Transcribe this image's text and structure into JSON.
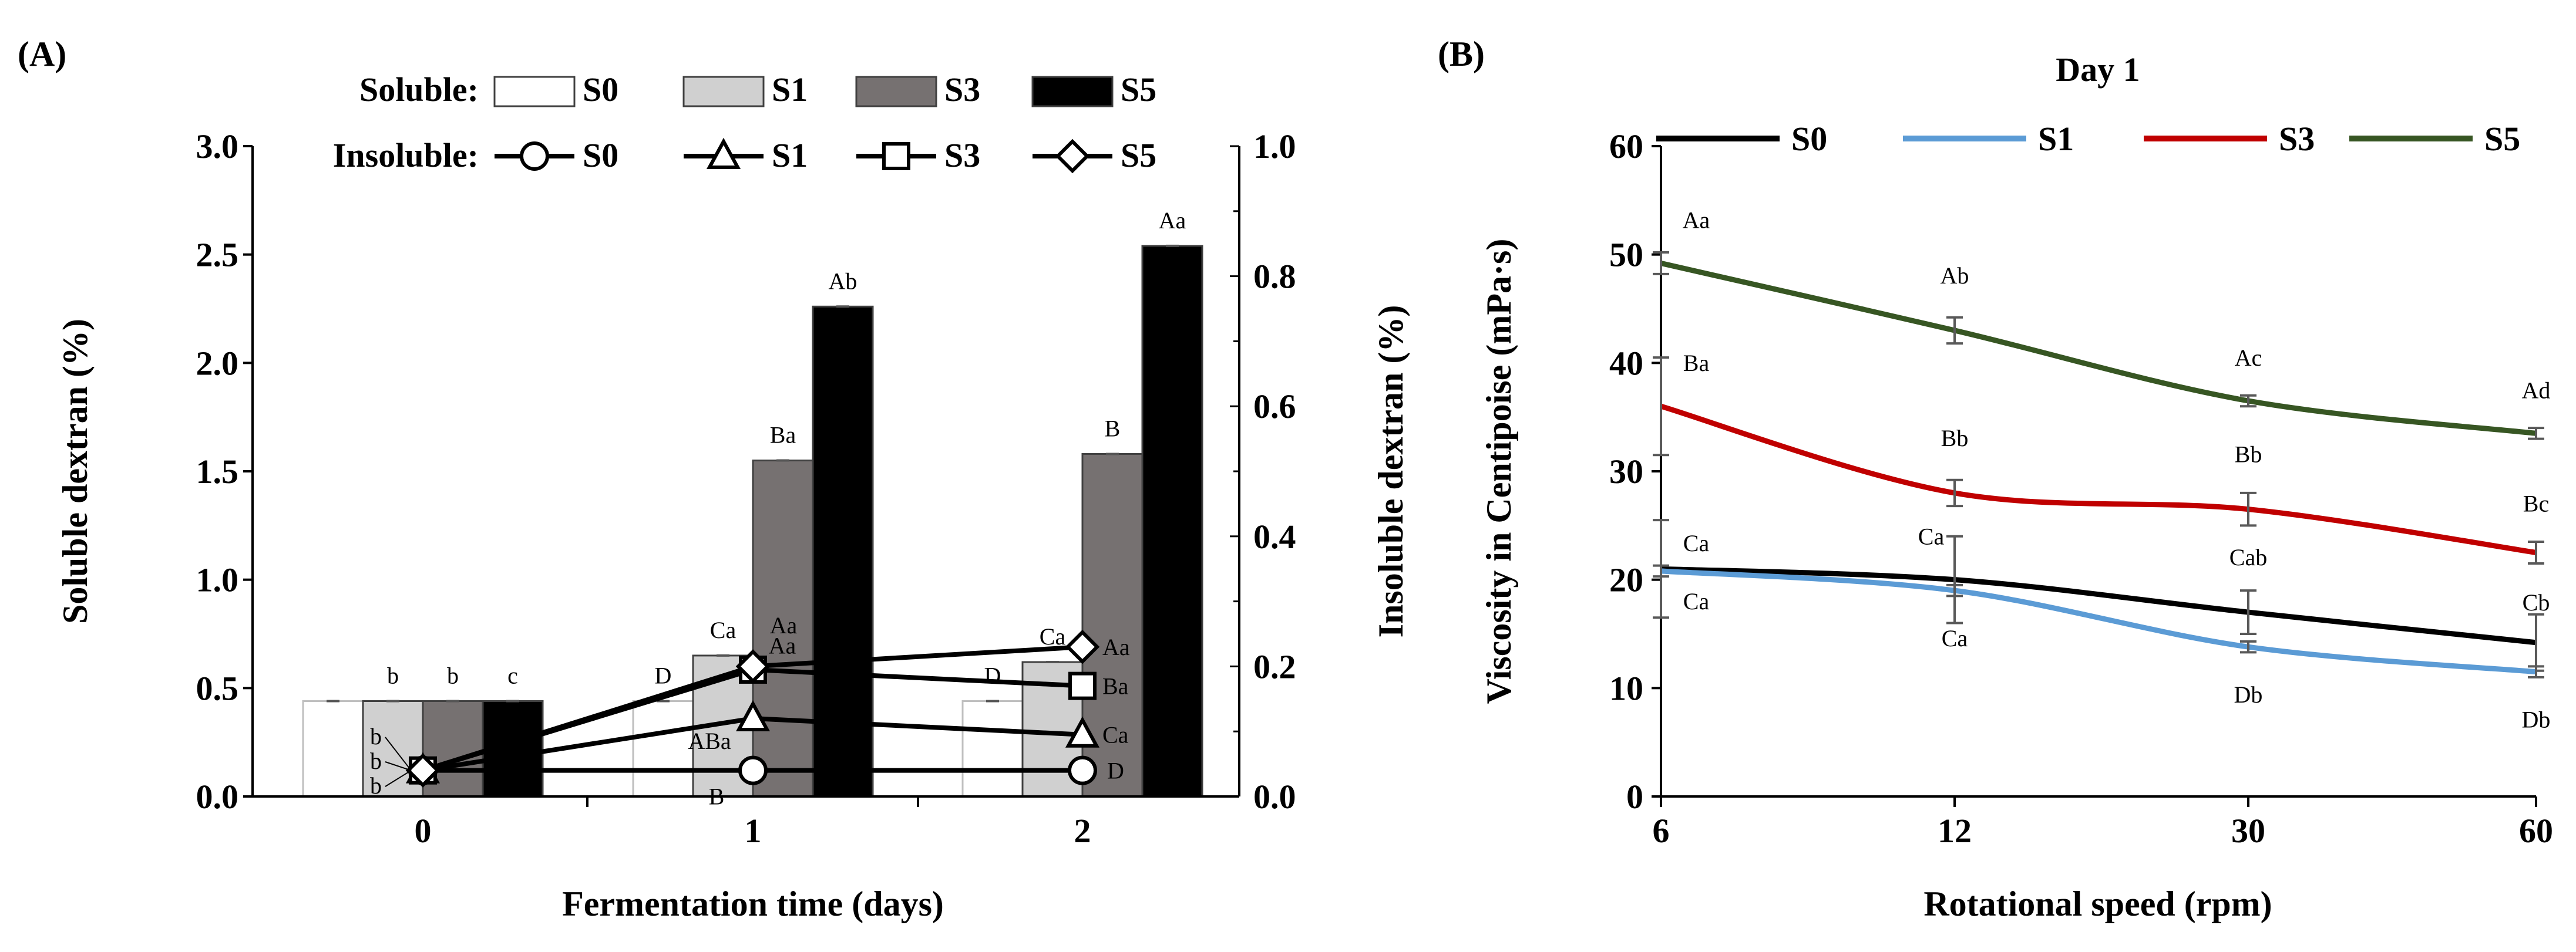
{
  "chart_data": [
    {
      "panel": "(A)",
      "type": "bar+line",
      "title": "",
      "xlabel": "Fermentation time (days)",
      "ylabel": "Soluble dextran (%)",
      "ylabel_right": "Insoluble dextran (%)",
      "categories": [
        "0",
        "1",
        "2"
      ],
      "ylim": [
        0,
        3.0
      ],
      "ylim_right": [
        0,
        1.0
      ],
      "yticks": [
        "0.0",
        "0.5",
        "1.0",
        "1.5",
        "2.0",
        "2.5",
        "3.0"
      ],
      "yticks_right": [
        "0.0",
        "0.2",
        "0.4",
        "0.6",
        "0.8",
        "1.0"
      ],
      "legend_soluble_label": "Soluble:",
      "legend_insoluble_label": "Insoluble:",
      "bar_series": [
        {
          "name": "S0",
          "color": "#ffffff",
          "values": [
            0.44,
            0.44,
            0.44
          ],
          "letters": [
            "",
            "D",
            ""
          ]
        },
        {
          "name": "S1",
          "color": "#d0d0d0",
          "values": [
            0.44,
            0.65,
            0.62
          ],
          "letters": [
            "b",
            "Ca",
            "Ca"
          ]
        },
        {
          "name": "S3",
          "color": "#767171",
          "values": [
            0.44,
            1.55,
            1.58
          ],
          "letters": [
            "b",
            "Ba",
            "B"
          ]
        },
        {
          "name": "S5",
          "color": "#000000",
          "values": [
            0.44,
            2.26,
            2.54
          ],
          "letters": [
            "c",
            "Ab",
            "Aa"
          ]
        }
      ],
      "bar_extra_labels": [
        {
          "text": "D",
          "category": "2",
          "series": "S0"
        }
      ],
      "line_series": [
        {
          "name": "S0",
          "marker": "circle",
          "values": [
            0.04,
            0.04,
            0.04
          ],
          "letters": [
            "b",
            "B",
            "D"
          ]
        },
        {
          "name": "S1",
          "marker": "triangle",
          "values": [
            0.04,
            0.12,
            0.095
          ],
          "letters": [
            "b",
            "ABa",
            "Ca"
          ]
        },
        {
          "name": "S3",
          "marker": "square",
          "values": [
            0.04,
            0.195,
            0.17
          ],
          "letters": [
            "b",
            "Aa",
            "Ba"
          ]
        },
        {
          "name": "S5",
          "marker": "diamond",
          "values": [
            0.04,
            0.2,
            0.23
          ],
          "letters": [
            "",
            "Aa",
            "Aa"
          ]
        }
      ]
    },
    {
      "panel": "(B)",
      "type": "line",
      "title": "Day 1",
      "xlabel": "Rotational speed (rpm)",
      "ylabel": "Viscosity in Centipoise (mPa·s)",
      "categories": [
        "6",
        "12",
        "30",
        "60"
      ],
      "ylim": [
        0,
        60
      ],
      "yticks": [
        "0",
        "10",
        "20",
        "30",
        "40",
        "50",
        "60"
      ],
      "series": [
        {
          "name": "S0",
          "color": "#000000",
          "values": [
            21.0,
            20.0,
            17.0,
            14.2
          ],
          "errors": [
            4.5,
            4.0,
            2.0,
            2.6
          ],
          "letters": [
            "Ca",
            "Ca",
            "Cab",
            "Cb"
          ]
        },
        {
          "name": "S1",
          "color": "#5b9bd5",
          "values": [
            20.8,
            19.0,
            13.8,
            11.5
          ],
          "errors": [
            0.5,
            0.5,
            0.5,
            0.5
          ],
          "letters": [
            "Ca",
            "Ca",
            "Db",
            "Db"
          ]
        },
        {
          "name": "S3",
          "color": "#c00000",
          "values": [
            36.0,
            28.0,
            26.5,
            22.5
          ],
          "errors": [
            4.5,
            1.2,
            1.5,
            1.0
          ],
          "letters": [
            "Ba",
            "Bb",
            "Bb",
            "Bc"
          ]
        },
        {
          "name": "S5",
          "color": "#375623",
          "values": [
            49.2,
            43.0,
            36.5,
            33.5
          ],
          "errors": [
            1.0,
            1.2,
            0.5,
            0.5
          ],
          "letters": [
            "Aa",
            "Ab",
            "Ac",
            "Ad"
          ]
        }
      ]
    }
  ]
}
